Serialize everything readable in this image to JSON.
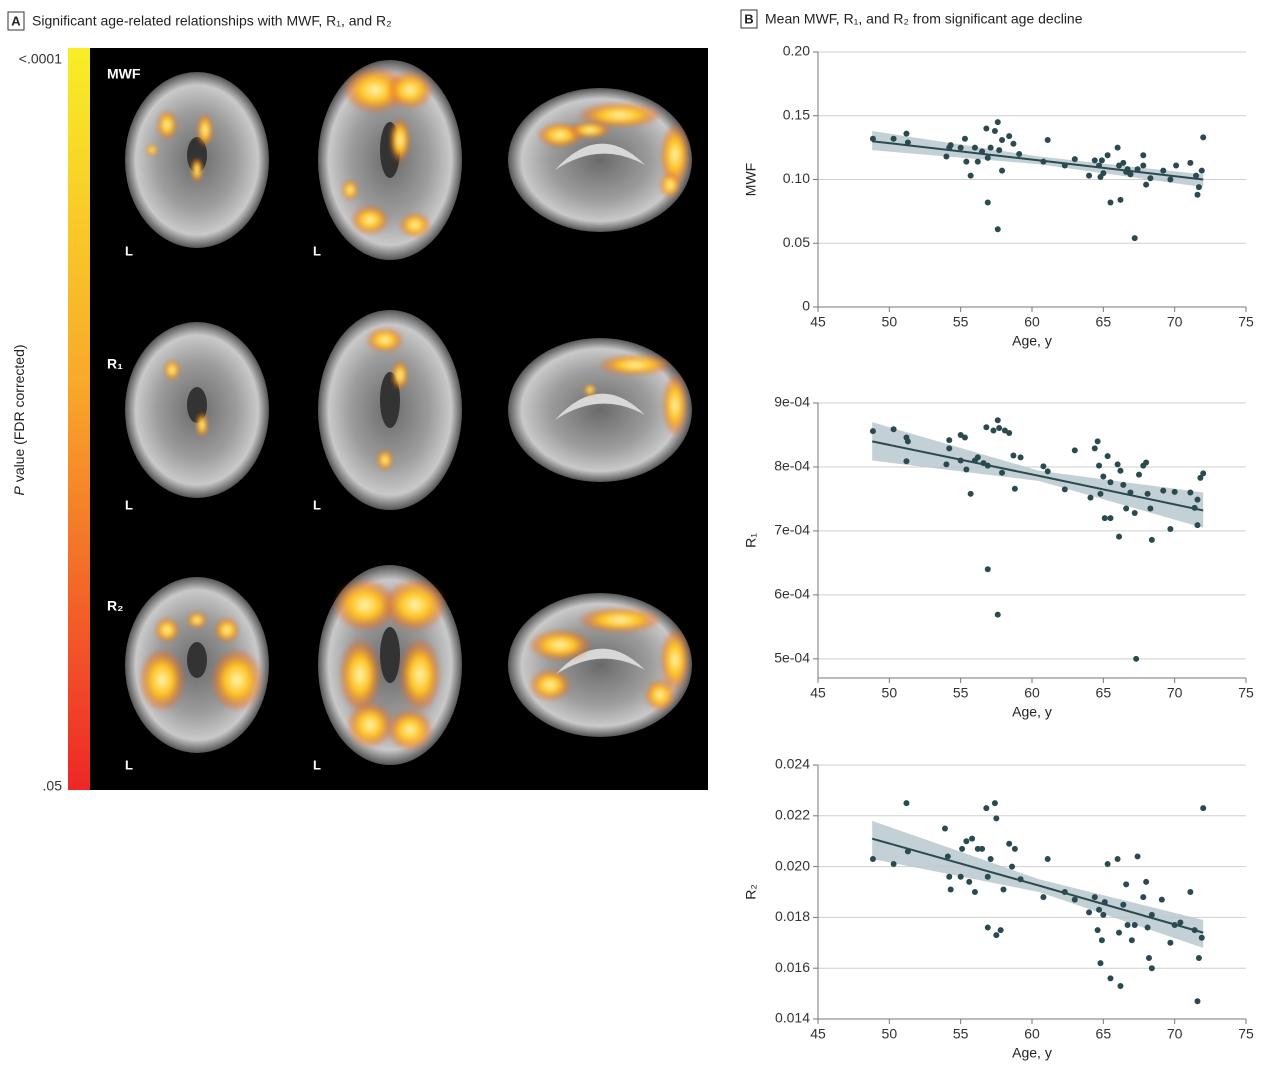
{
  "panel_a": {
    "label": "A",
    "title": "Significant age-related relationships with MWF, R₁, and R₂",
    "colorbar": {
      "top": "<.0001",
      "bottom": ".05",
      "symbol": "P",
      "label": "value (FDR corrected)"
    },
    "rows": [
      {
        "label": "MWF",
        "views": [
          "L",
          "L"
        ]
      },
      {
        "label": "R₁",
        "views": [
          "L",
          "L"
        ]
      },
      {
        "label": "R₂",
        "views": [
          "L",
          "L"
        ]
      }
    ]
  },
  "panel_b": {
    "label": "B",
    "title": "Mean MWF, R₁, and R₂ from significant age decline"
  },
  "chart_data": [
    {
      "type": "scatter",
      "xlabel": "Age, y",
      "ylabel": "MWF",
      "color": "#2b4a50",
      "x": [
        48.85,
        50.3,
        51.2,
        51.3,
        54.0,
        54.2,
        54.3,
        55.0,
        55.3,
        55.4,
        55.7,
        56.0,
        56.2,
        56.5,
        56.8,
        56.9,
        56.9,
        57.1,
        57.4,
        57.6,
        57.6,
        57.7,
        57.9,
        57.9,
        58.4,
        58.7,
        59.1,
        60.8,
        61.1,
        62.3,
        63.0,
        64.0,
        64.4,
        64.7,
        64.8,
        64.9,
        65.0,
        65.3,
        65.5,
        66.0,
        66.1,
        66.2,
        66.4,
        66.6,
        66.7,
        66.9,
        67.2,
        67.4,
        67.8,
        67.8,
        68.0,
        68.3,
        69.2,
        69.7,
        70.1,
        71.1,
        71.5,
        71.6,
        71.7,
        71.9,
        72.0
      ],
      "values": [
        0.132,
        0.132,
        0.136,
        0.129,
        0.118,
        0.125,
        0.127,
        0.125,
        0.132,
        0.114,
        0.103,
        0.125,
        0.114,
        0.122,
        0.14,
        0.117,
        0.082,
        0.125,
        0.138,
        0.145,
        0.061,
        0.123,
        0.131,
        0.107,
        0.134,
        0.128,
        0.12,
        0.114,
        0.131,
        0.111,
        0.116,
        0.103,
        0.115,
        0.111,
        0.102,
        0.115,
        0.105,
        0.119,
        0.082,
        0.125,
        0.111,
        0.084,
        0.113,
        0.106,
        0.108,
        0.104,
        0.054,
        0.108,
        0.119,
        0.111,
        0.096,
        0.101,
        0.107,
        0.1,
        0.111,
        0.113,
        0.103,
        0.088,
        0.094,
        0.107,
        0.133
      ],
      "fit": {
        "x": [
          48.8,
          60.5,
          72
        ],
        "y": [
          0.13,
          0.115,
          0.1
        ],
        "lower": [
          0.123,
          0.112,
          0.094
        ],
        "upper": [
          0.138,
          0.118,
          0.104
        ],
        "color": "#2b4a50",
        "band_color": "#b9c8ce"
      },
      "xlim": [
        45,
        75
      ],
      "xticks": [
        45,
        50,
        55,
        60,
        65,
        70,
        75
      ],
      "ylim": [
        0,
        0.2
      ],
      "yticks": [
        0,
        0.05,
        {
          "value": 0.1,
          "label": "0.10"
        },
        0.15,
        {
          "value": 0.2,
          "label": "0.20"
        }
      ],
      "grid": true
    },
    {
      "type": "scatter",
      "xlabel": "Age, y",
      "ylabel": "R₁",
      "color": "#2b4a50",
      "x": [
        48.85,
        50.3,
        51.2,
        51.3,
        51.2,
        54.0,
        54.2,
        54.2,
        55.0,
        55.3,
        55.0,
        55.4,
        55.7,
        56.0,
        56.2,
        56.6,
        56.8,
        56.9,
        56.9,
        57.3,
        57.6,
        57.6,
        57.7,
        57.9,
        58.1,
        58.4,
        58.7,
        58.8,
        59.2,
        60.8,
        61.1,
        62.3,
        63.0,
        64.1,
        64.4,
        64.6,
        64.7,
        64.8,
        65.0,
        65.1,
        65.3,
        65.5,
        65.5,
        66.0,
        66.1,
        66.2,
        66.4,
        66.6,
        66.9,
        67.2,
        67.3,
        67.5,
        67.8,
        68.0,
        68.1,
        68.4,
        68.3,
        69.2,
        69.7,
        70.0,
        71.1,
        71.4,
        71.6,
        71.6,
        71.8,
        72.0
      ],
      "values": [
        0.000856,
        0.000859,
        0.000846,
        0.00084,
        0.000809,
        0.000804,
        0.000842,
        0.000829,
        0.00085,
        0.000846,
        0.00081,
        0.000796,
        0.000758,
        0.00081,
        0.000815,
        0.000806,
        0.000862,
        0.000802,
        0.00064,
        0.000857,
        0.000873,
        0.000569,
        0.000861,
        0.000791,
        0.000857,
        0.000853,
        0.000818,
        0.000766,
        0.000815,
        0.000801,
        0.000793,
        0.000765,
        0.000826,
        0.000752,
        0.000829,
        0.00084,
        0.000802,
        0.000758,
        0.000785,
        0.00072,
        0.000817,
        0.00072,
        0.000776,
        0.000804,
        0.000691,
        0.000794,
        0.000772,
        0.000735,
        0.00076,
        0.000728,
        0.0005,
        0.000788,
        0.000802,
        0.000807,
        0.000758,
        0.000686,
        0.000735,
        0.000763,
        0.000703,
        0.000761,
        0.00076,
        0.000736,
        0.000709,
        0.000749,
        0.000783,
        0.00079
      ],
      "fit": {
        "x": [
          48.8,
          60.5,
          72
        ],
        "y": [
          0.00084,
          0.000786,
          0.000732
        ],
        "lower": [
          0.00081,
          0.000778,
          0.000705
        ],
        "upper": [
          0.00087,
          0.000794,
          0.00076
        ],
        "color": "#2b4a50",
        "band_color": "#b9c8ce"
      },
      "xlim": [
        45,
        75
      ],
      "xticks": [
        45,
        50,
        55,
        60,
        65,
        70,
        75
      ],
      "ylim": [
        0.00047,
        0.0009
      ],
      "yticks": [
        {
          "value": 0.0005,
          "label": "5e-04"
        },
        {
          "value": 0.0006,
          "label": "6e-04"
        },
        {
          "value": 0.0007,
          "label": "7e-04"
        },
        {
          "value": 0.0008,
          "label": "8e-04"
        },
        {
          "value": 0.0009,
          "label": "9e-04"
        }
      ],
      "grid": true
    },
    {
      "type": "scatter",
      "xlabel": "Age, y",
      "ylabel": "R₂",
      "color": "#2b4a50",
      "x": [
        48.85,
        51.2,
        50.3,
        51.3,
        53.9,
        54.1,
        54.2,
        54.3,
        55.0,
        55.1,
        55.4,
        55.6,
        55.8,
        56.0,
        56.2,
        56.5,
        56.8,
        56.9,
        56.9,
        57.1,
        57.4,
        57.5,
        57.5,
        57.8,
        58.0,
        58.4,
        58.6,
        58.8,
        59.2,
        60.8,
        61.1,
        62.3,
        63.0,
        64.0,
        64.4,
        64.6,
        64.7,
        64.8,
        64.9,
        65.0,
        65.1,
        65.3,
        65.5,
        66.0,
        66.1,
        66.2,
        66.4,
        66.6,
        66.7,
        67.0,
        67.2,
        67.4,
        67.8,
        68.0,
        68.1,
        68.2,
        68.4,
        68.4,
        69.1,
        69.7,
        70.0,
        70.4,
        71.1,
        71.4,
        71.6,
        71.7,
        71.9,
        72.0
      ],
      "values": [
        0.0203,
        0.0225,
        0.0201,
        0.0206,
        0.0215,
        0.0204,
        0.0196,
        0.0191,
        0.0196,
        0.0207,
        0.021,
        0.0194,
        0.0211,
        0.019,
        0.0207,
        0.0207,
        0.0223,
        0.0176,
        0.0196,
        0.0203,
        0.0225,
        0.0219,
        0.0173,
        0.0175,
        0.0191,
        0.0209,
        0.02,
        0.0207,
        0.0195,
        0.0188,
        0.0203,
        0.019,
        0.0187,
        0.0182,
        0.0188,
        0.0175,
        0.0183,
        0.0162,
        0.0171,
        0.0181,
        0.0186,
        0.0201,
        0.0156,
        0.0203,
        0.0174,
        0.0153,
        0.0185,
        0.0193,
        0.0177,
        0.0171,
        0.0177,
        0.0204,
        0.0188,
        0.0194,
        0.0176,
        0.0164,
        0.016,
        0.0181,
        0.0187,
        0.017,
        0.0177,
        0.0178,
        0.019,
        0.0175,
        0.0147,
        0.0164,
        0.0172,
        0.0223
      ],
      "fit": {
        "x": [
          48.8,
          60.5,
          72
        ],
        "y": [
          0.0211,
          0.01925,
          0.0174
        ],
        "lower": [
          0.0203,
          0.019,
          0.0168
        ],
        "upper": [
          0.0218,
          0.0195,
          0.0179
        ],
        "color": "#2b4a50",
        "band_color": "#b9c8ce"
      },
      "xlim": [
        45,
        75
      ],
      "xticks": [
        45,
        50,
        55,
        60,
        65,
        70,
        75
      ],
      "ylim": [
        0.014,
        0.024
      ],
      "yticks": [
        0.014,
        0.016,
        0.018,
        {
          "value": 0.02,
          "label": "0.020"
        },
        0.022,
        0.024
      ],
      "grid": true
    }
  ]
}
